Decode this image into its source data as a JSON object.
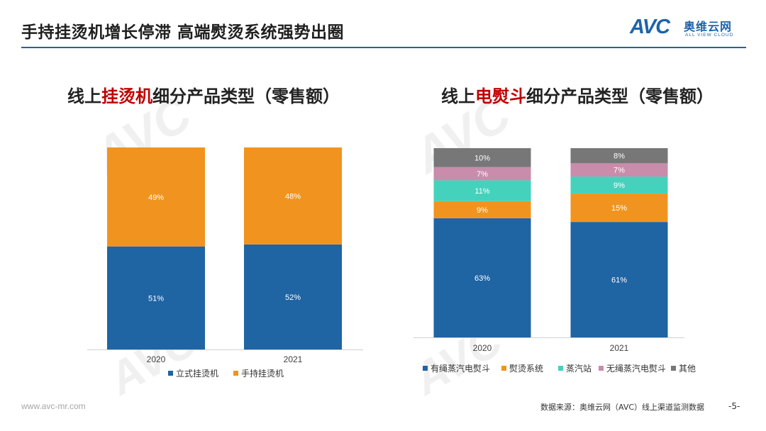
{
  "header": {
    "title": "手持挂烫机增长停滞  高端熨烫系统强势出圈",
    "logo_mark": "AVC",
    "logo_cn": "奥维云网",
    "logo_en": "ALL VIEW CLOUD"
  },
  "charts_meta": [
    {
      "title_prefix": "线上",
      "title_highlight": "挂烫机",
      "title_suffix": "细分产品类型（零售额）"
    },
    {
      "title_prefix": "线上",
      "title_highlight": "电熨斗",
      "title_suffix": "细分产品类型（零售额）"
    }
  ],
  "watermark": {
    "mark": "AVC",
    "cn": "奥维云网",
    "en": "ALL VIEW CLOUD"
  },
  "footer": {
    "url": "www.avc-mr.com",
    "source": "数据来源：奥维云网（AVC）线上渠道监测数据",
    "page": "-5-"
  },
  "colors": {
    "accent": "#1e64a8",
    "highlight": "#c00000"
  },
  "chart_data": [
    {
      "type": "bar",
      "stacked": true,
      "normalized_percent": true,
      "title": "线上挂烫机细分产品类型（零售额）",
      "categories": [
        "2020",
        "2021"
      ],
      "ylim": [
        0,
        100
      ],
      "grid": false,
      "legend_position": "bottom",
      "series": [
        {
          "name": "立式挂烫机",
          "color": "#1f64a3",
          "values": [
            51,
            52
          ],
          "labels": [
            "51%",
            "52%"
          ]
        },
        {
          "name": "手持挂烫机",
          "color": "#f0941f",
          "values": [
            49,
            48
          ],
          "labels": [
            "49%",
            "48%"
          ]
        }
      ]
    },
    {
      "type": "bar",
      "stacked": true,
      "normalized_percent": true,
      "title": "线上电熨斗细分产品类型（零售额）",
      "categories": [
        "2020",
        "2021"
      ],
      "ylim": [
        0,
        100
      ],
      "grid": false,
      "legend_position": "bottom",
      "series": [
        {
          "name": "有绳蒸汽电熨斗",
          "color": "#1f64a3",
          "values": [
            63,
            61
          ],
          "labels": [
            "63%",
            "61%"
          ]
        },
        {
          "name": "熨烫系统",
          "color": "#f0941f",
          "values": [
            9,
            15
          ],
          "labels": [
            "9%",
            "15%"
          ]
        },
        {
          "name": "蒸汽站",
          "color": "#45d2bd",
          "values": [
            11,
            9
          ],
          "labels": [
            "11%",
            "9%"
          ]
        },
        {
          "name": "无绳蒸汽电熨斗",
          "color": "#c98cab",
          "values": [
            7,
            7
          ],
          "labels": [
            "7%",
            "7%"
          ]
        },
        {
          "name": "其他",
          "color": "#777777",
          "values": [
            10,
            8
          ],
          "labels": [
            "10%",
            "8%"
          ]
        }
      ]
    }
  ]
}
